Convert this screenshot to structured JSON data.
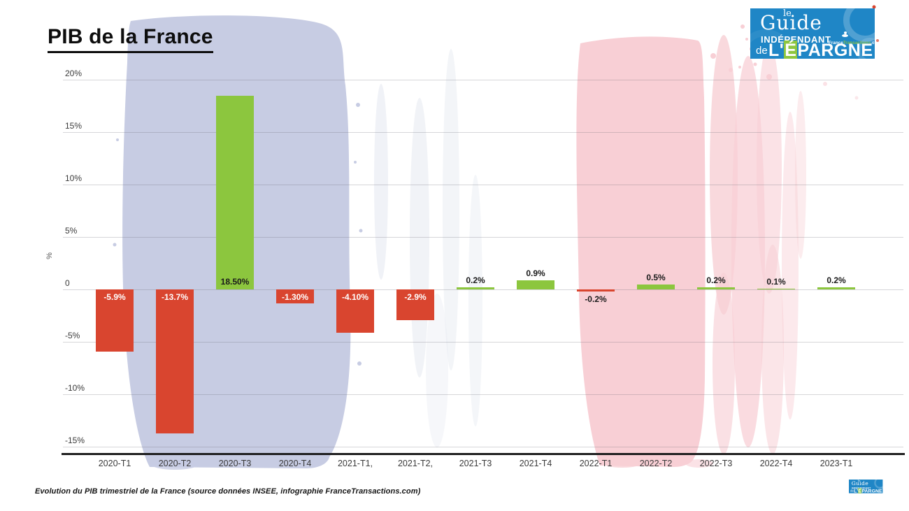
{
  "header": {
    "title": "PIB de la France"
  },
  "logo": {
    "le": "le",
    "guide": "Guide",
    "independant": "INDÉPENDANT",
    "de": "de",
    "epargne_prefix": "L'",
    "epargne_accent": "É",
    "epargne_suffix": "PARGNE",
    "site_part1": "France",
    "site_part2": "Transactions",
    "site_part3": ".com",
    "bg_color": "#1f86c6",
    "accent_color": "#8dc63f"
  },
  "chart_data": {
    "type": "bar",
    "title": "PIB de la France",
    "xlabel": "",
    "ylabel": "%",
    "ylim": [
      -15,
      20
    ],
    "grid": true,
    "categories": [
      "2020-T1",
      "2020-T2",
      "2020-T3",
      "2020-T4",
      "2021-T1,",
      "2021-T2,",
      "2021-T3",
      "2021-T4",
      "2022-T1",
      "2022-T2",
      "2022-T3",
      "2022-T4",
      "2023-T1"
    ],
    "values": [
      -5.9,
      -13.7,
      18.5,
      -1.3,
      -4.1,
      -2.9,
      0.2,
      0.9,
      -0.2,
      0.5,
      0.2,
      0.1,
      0.2
    ],
    "bar_labels": [
      "-5.9%",
      "-13.7%",
      "18.50%",
      "-1.30%",
      "-4.10%",
      "-2.9%",
      "0.2%",
      "0.9%",
      "-0.2%",
      "0.5%",
      "0.2%",
      "0.1%",
      "0.2%"
    ],
    "label_positions": [
      "inside-top",
      "inside-top",
      "inside-bottom",
      "inside-top",
      "inside-top",
      "inside-top",
      "above",
      "above",
      "below",
      "above",
      "above",
      "above",
      "above"
    ],
    "yticks": [
      {
        "value": 20,
        "label": "20%"
      },
      {
        "value": 15,
        "label": "15%"
      },
      {
        "value": 10,
        "label": "10%"
      },
      {
        "value": 5,
        "label": "5%"
      },
      {
        "value": 0,
        "label": "0"
      },
      {
        "value": -5,
        "label": "-5%"
      },
      {
        "value": -10,
        "label": "-10%"
      },
      {
        "value": -15,
        "label": "-15%"
      }
    ],
    "colors": {
      "positive_bar": "#8cc63e",
      "negative_bar": "#d9452f",
      "inside_label": "#ffffff",
      "outside_label": "#1a1a1a"
    }
  },
  "footer": {
    "caption": "Evolution du PIB trimestriel de la France (source données INSEE, infographie FranceTransactions.com)"
  }
}
